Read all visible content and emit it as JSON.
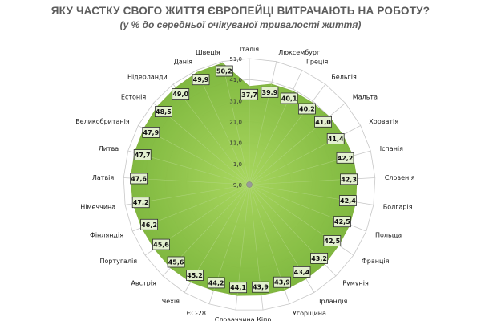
{
  "header": {
    "title": "ЯКУ ЧАСТКУ СВОГО ЖИТТЯ ЄВРОПЕЙЦІ ВИТРАЧАЮТЬ НА РОБОТУ?",
    "subtitle": "(у % до середньої очікуваної тривалості життя)"
  },
  "chart_data": {
    "type": "radar",
    "title": "ЯКУ ЧАСТКУ СВОГО ЖИТТЯ ЄВРОПЕЙЦІ ВИТРАЧАЮТЬ НА РОБОТУ?",
    "subtitle": "(у % до середньої очікуваної тривалості життя)",
    "rlim": [
      -9.0,
      51.0
    ],
    "ticks": [
      -9.0,
      1.0,
      11.0,
      21.0,
      31.0,
      41.0,
      51.0
    ],
    "tick_labels": [
      "-9,0",
      "1,0",
      "11,0",
      "21,0",
      "31,0",
      "41,0",
      "51,0"
    ],
    "grid": true,
    "fill_color": "#8cc63f",
    "categories": [
      "Італія",
      "Люксембург",
      "Греція",
      "Бельгія",
      "Мальта",
      "Хорватія",
      "Іспанія",
      "Словенія",
      "Болгарія",
      "Польща",
      "Франція",
      "Румунія",
      "Ірландія",
      "Угорщина",
      "Кіпр",
      "Словаччина",
      "ЄС-28",
      "Чехія",
      "Австрія",
      "Португалія",
      "Фінляндія",
      "Німеччина",
      "Латвія",
      "Литва",
      "Великобританія",
      "Естонія",
      "Нідерланди",
      "Данія",
      "Швеція"
    ],
    "values": [
      37.7,
      39.9,
      40.1,
      40.2,
      41.0,
      41.4,
      42.2,
      42.3,
      42.4,
      42.5,
      42.5,
      43.2,
      43.4,
      43.9,
      43.9,
      44.1,
      44.2,
      45.2,
      45.6,
      45.6,
      46.2,
      47.2,
      47.6,
      47.7,
      47.9,
      48.5,
      49.0,
      49.9,
      50.2
    ],
    "value_labels": [
      "37,7",
      "39,9",
      "40,1",
      "40,2",
      "41,0",
      "41,4",
      "42,2",
      "42,3",
      "42,4",
      "42,5",
      "42,5",
      "43,2",
      "43,4",
      "43,9",
      "43,9",
      "44,1",
      "44,2",
      "45,2",
      "45,6",
      "45,6",
      "46,2",
      "47,2",
      "47,6",
      "47,7",
      "47,9",
      "48,5",
      "49,0",
      "49,9",
      "50,2"
    ]
  }
}
